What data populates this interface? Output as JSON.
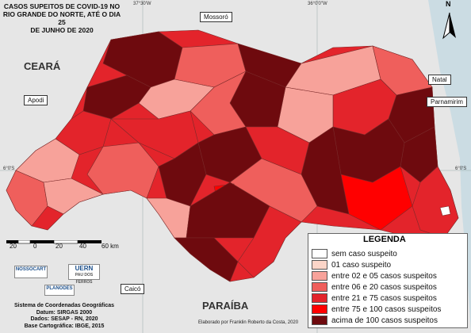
{
  "title_lines": [
    "CASOS SUPEITOS DE COVID-19 NO",
    "RIO GRANDE DO NORTE, ATÉ O DIA 25",
    "DE JUNHO DE 2020"
  ],
  "regions": {
    "ceara": "CEARÁ",
    "paraiba": "PARAÍBA"
  },
  "cities": {
    "mossoro": "Mossoró",
    "apodi": "Apodi",
    "natal": "Natal",
    "parnamirim": "Parnamirim",
    "caico": "Caicó"
  },
  "coordinates": {
    "lon_west": "37°30'W",
    "lon_east": "36°0'0\"W",
    "lat_west": "6°0'S",
    "lat_east": "6°0'S"
  },
  "legend": {
    "title": "LEGENDA",
    "items": [
      {
        "label": "sem caso suspeito",
        "color": "#ffffff"
      },
      {
        "label": "01 caso suspeito",
        "color": "#fcd5c8"
      },
      {
        "label": "entre 02 e 05 casos suspeitos",
        "color": "#f7a29a"
      },
      {
        "label": "entre 06 e 20 casos suspeitos",
        "color": "#ef5f5c"
      },
      {
        "label": "entre 21 e 75 casos suspeitos",
        "color": "#e3242b"
      },
      {
        "label": "entre 75 e 100 casos suspeitos",
        "color": "#ff0000"
      },
      {
        "label": "acima de 100 casos suspeitos",
        "color": "#6e0a0e"
      }
    ]
  },
  "scale": {
    "ticks": [
      "20",
      "0",
      "20",
      "40",
      "60 km"
    ]
  },
  "logos": {
    "nossocart": "NOSSOCART",
    "uern": "UERN",
    "uern_sub": "PAU DOS FERROS",
    "planodes": "PLANODES"
  },
  "crs_lines": [
    "Sistema de Coordenadas Geográficas",
    "Datum: SIRGAS 2000",
    "Dados: SESAP - RN, 2020",
    "Base Cartográfica: IBGE, 2015"
  ],
  "credits": "Elaborado por Franklin Roberto da Costa, 2020",
  "compass_label": "N",
  "colors": {
    "ocean": "#cbdce3",
    "neighbor": "#e6e6e6"
  }
}
